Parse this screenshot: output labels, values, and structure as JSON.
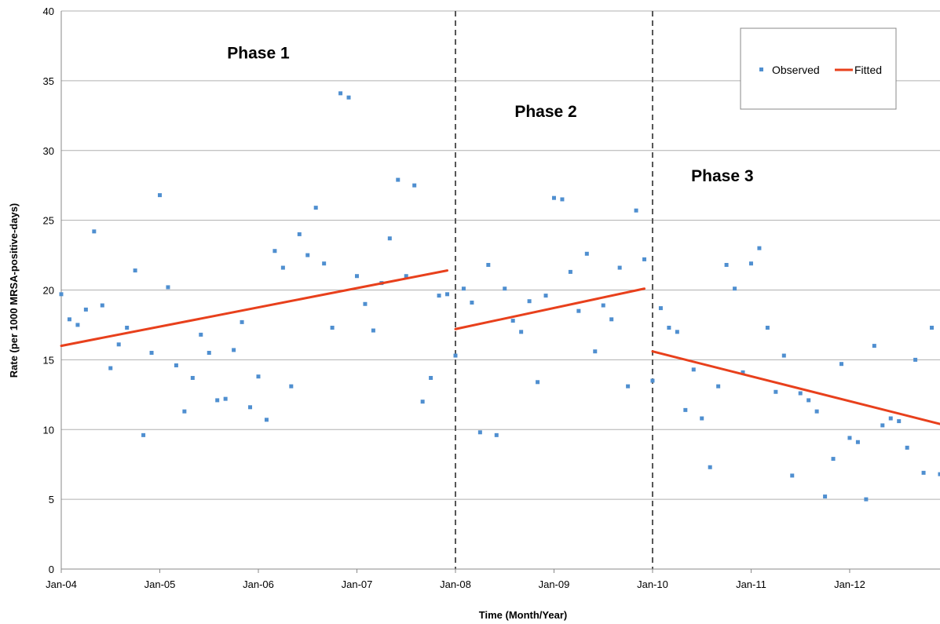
{
  "chart_data": {
    "type": "scatter",
    "xlabel": "Time (Month/Year)",
    "ylabel": "Rate (per 1000 MRSA-positive-days)",
    "ylim": [
      0,
      40
    ],
    "yticks": [
      0,
      5,
      10,
      15,
      20,
      25,
      30,
      35,
      40
    ],
    "x_unit": "months since Jan-04",
    "xlim": [
      0,
      107
    ],
    "xtick_labels": [
      "Jan-04",
      "Jan-05",
      "Jan-06",
      "Jan-07",
      "Jan-08",
      "Jan-09",
      "Jan-10",
      "Jan-11",
      "Jan-12"
    ],
    "grid": "horizontal",
    "legend_position": "top-right",
    "colors": {
      "observed": "#4f8fd0",
      "fitted": "#e8401c",
      "phase_line": "#555555",
      "grid": "#b0b0b0"
    },
    "phase_boundaries": [
      48,
      72
    ],
    "phase_labels": [
      "Phase 1",
      "Phase 2",
      "Phase 3"
    ],
    "series": [
      {
        "name": "Observed",
        "marker": "square",
        "x": [
          0,
          1,
          2,
          3,
          4,
          5,
          6,
          7,
          8,
          9,
          10,
          11,
          12,
          13,
          14,
          15,
          16,
          17,
          18,
          19,
          20,
          21,
          22,
          23,
          24,
          25,
          26,
          27,
          28,
          29,
          30,
          31,
          32,
          33,
          34,
          35,
          36,
          37,
          38,
          39,
          40,
          41,
          42,
          43,
          44,
          45,
          46,
          47,
          48,
          49,
          50,
          51,
          52,
          53,
          54,
          55,
          56,
          57,
          58,
          59,
          60,
          61,
          62,
          63,
          64,
          65,
          66,
          67,
          68,
          69,
          70,
          71,
          72,
          73,
          74,
          75,
          76,
          77,
          78,
          79,
          80,
          81,
          82,
          83,
          84,
          85,
          86,
          87,
          88,
          89,
          90,
          91,
          92,
          93,
          94,
          95,
          96,
          97,
          98,
          99,
          100,
          101,
          102,
          103,
          104,
          105,
          106,
          107
        ],
        "y": [
          19.7,
          17.9,
          17.5,
          18.6,
          24.2,
          18.9,
          14.4,
          16.1,
          17.3,
          21.4,
          9.6,
          15.5,
          26.8,
          20.2,
          14.6,
          11.3,
          13.7,
          16.8,
          15.5,
          12.1,
          12.2,
          15.7,
          17.7,
          11.6,
          13.8,
          10.7,
          22.8,
          21.6,
          13.1,
          24.0,
          22.5,
          25.9,
          21.9,
          17.3,
          34.1,
          33.8,
          21.0,
          19.0,
          17.1,
          20.5,
          23.7,
          27.9,
          21.0,
          27.5,
          12.0,
          13.7,
          19.6,
          19.7,
          15.3,
          20.1,
          19.1,
          9.8,
          21.8,
          9.6,
          20.1,
          17.8,
          17.0,
          19.2,
          13.4,
          19.6,
          26.6,
          26.5,
          21.3,
          18.5,
          22.6,
          15.6,
          18.9,
          17.9,
          21.6,
          13.1,
          25.7,
          22.2,
          13.5,
          18.7,
          17.3,
          17.0,
          11.4,
          14.3,
          10.8,
          7.3,
          13.1,
          21.8,
          20.1,
          14.1,
          21.9,
          23.0,
          17.3,
          12.7,
          15.3,
          6.7,
          12.6,
          12.1,
          11.3,
          5.2,
          7.9,
          14.7,
          9.4,
          9.1,
          5.0,
          16.0,
          10.3,
          10.8,
          10.6,
          8.7,
          15.0,
          6.9,
          17.3,
          6.8
        ]
      },
      {
        "name": "Fitted",
        "segments": [
          {
            "x": [
              0,
              47
            ],
            "y": [
              16.0,
              21.4
            ]
          },
          {
            "x": [
              48,
              71
            ],
            "y": [
              17.2,
              20.1
            ]
          },
          {
            "x": [
              72,
              107
            ],
            "y": [
              15.6,
              10.4
            ]
          }
        ]
      }
    ]
  }
}
